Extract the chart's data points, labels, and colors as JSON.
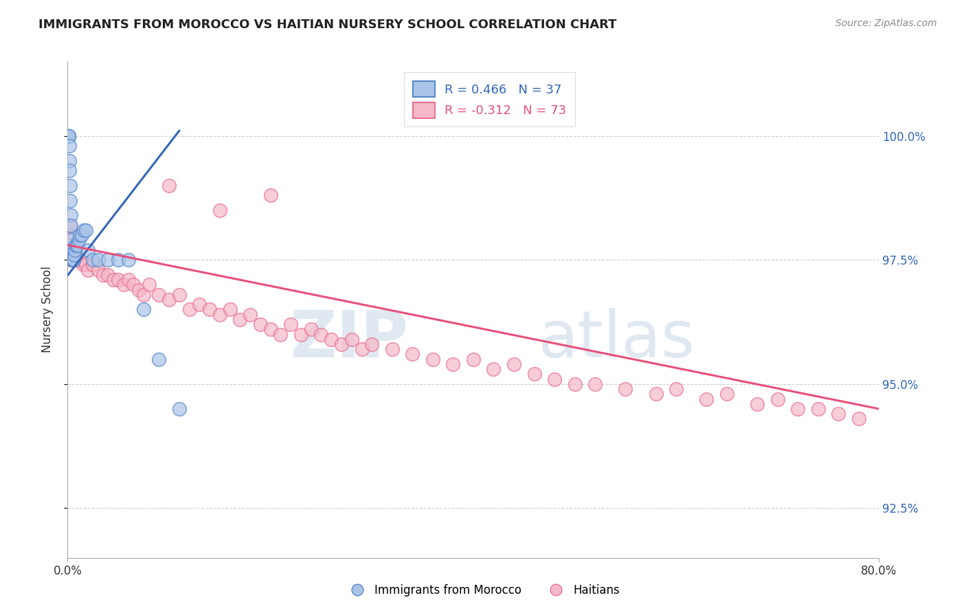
{
  "title": "IMMIGRANTS FROM MOROCCO VS HAITIAN NURSERY SCHOOL CORRELATION CHART",
  "source": "Source: ZipAtlas.com",
  "ylabel": "Nursery School",
  "ylim": [
    91.5,
    101.5
  ],
  "xlim": [
    0,
    80
  ],
  "yticks": [
    92.5,
    95.0,
    97.5,
    100.0
  ],
  "ytick_labels": [
    "92.5%",
    "95.0%",
    "97.5%",
    "100.0%"
  ],
  "blue_R": 0.466,
  "blue_N": 37,
  "pink_R": -0.312,
  "pink_N": 73,
  "blue_color": "#aac4e8",
  "pink_color": "#f5b8c8",
  "blue_edge_color": "#5588cc",
  "pink_edge_color": "#e87090",
  "blue_line_color": "#3366bb",
  "pink_line_color": "#e8507a",
  "legend_label_blue": "Immigrants from Morocco",
  "legend_label_pink": "Haitians",
  "watermark_text": "ZIPatlas",
  "blue_x": [
    0.05,
    0.08,
    0.1,
    0.12,
    0.15,
    0.18,
    0.2,
    0.22,
    0.25,
    0.28,
    0.3,
    0.32,
    0.35,
    0.4,
    0.45,
    0.5,
    0.55,
    0.6,
    0.65,
    0.7,
    0.8,
    0.9,
    1.0,
    1.1,
    1.2,
    1.4,
    1.6,
    1.8,
    2.0,
    2.5,
    3.0,
    4.0,
    5.0,
    6.0,
    7.5,
    9.0,
    11.0
  ],
  "blue_y": [
    100.0,
    100.0,
    100.0,
    100.0,
    99.8,
    99.5,
    99.3,
    99.0,
    98.7,
    98.4,
    98.2,
    97.9,
    97.7,
    97.5,
    97.5,
    97.5,
    97.5,
    97.5,
    97.6,
    97.7,
    97.8,
    97.8,
    97.8,
    97.9,
    98.0,
    98.0,
    98.1,
    98.1,
    97.7,
    97.5,
    97.5,
    97.5,
    97.5,
    97.5,
    96.5,
    95.5,
    94.5
  ],
  "pink_x": [
    0.1,
    0.15,
    0.2,
    0.25,
    0.3,
    0.4,
    0.5,
    0.6,
    0.8,
    1.0,
    1.2,
    1.5,
    1.8,
    2.0,
    2.5,
    3.0,
    3.5,
    4.0,
    4.5,
    5.0,
    5.5,
    6.0,
    6.5,
    7.0,
    7.5,
    8.0,
    9.0,
    10.0,
    11.0,
    12.0,
    13.0,
    14.0,
    15.0,
    16.0,
    17.0,
    18.0,
    19.0,
    20.0,
    21.0,
    22.0,
    23.0,
    24.0,
    25.0,
    26.0,
    27.0,
    28.0,
    29.0,
    30.0,
    32.0,
    34.0,
    36.0,
    38.0,
    40.0,
    42.0,
    44.0,
    46.0,
    48.0,
    50.0,
    52.0,
    55.0,
    58.0,
    60.0,
    63.0,
    65.0,
    68.0,
    70.0,
    72.0,
    74.0,
    76.0,
    78.0,
    10.0,
    15.0,
    20.0
  ],
  "pink_y": [
    98.0,
    98.2,
    97.8,
    97.6,
    97.5,
    97.7,
    97.6,
    97.5,
    97.5,
    97.5,
    97.5,
    97.4,
    97.4,
    97.3,
    97.4,
    97.3,
    97.2,
    97.2,
    97.1,
    97.1,
    97.0,
    97.1,
    97.0,
    96.9,
    96.8,
    97.0,
    96.8,
    96.7,
    96.8,
    96.5,
    96.6,
    96.5,
    96.4,
    96.5,
    96.3,
    96.4,
    96.2,
    96.1,
    96.0,
    96.2,
    96.0,
    96.1,
    96.0,
    95.9,
    95.8,
    95.9,
    95.7,
    95.8,
    95.7,
    95.6,
    95.5,
    95.4,
    95.5,
    95.3,
    95.4,
    95.2,
    95.1,
    95.0,
    95.0,
    94.9,
    94.8,
    94.9,
    94.7,
    94.8,
    94.6,
    94.7,
    94.5,
    94.5,
    94.4,
    94.3,
    99.0,
    98.5,
    98.8
  ],
  "pink_line_x0": 0,
  "pink_line_y0": 97.8,
  "pink_line_x1": 80,
  "pink_line_y1": 94.5,
  "blue_line_x0": 0.05,
  "blue_line_y0": 97.2,
  "blue_line_x1": 11.0,
  "blue_line_y1": 100.1
}
